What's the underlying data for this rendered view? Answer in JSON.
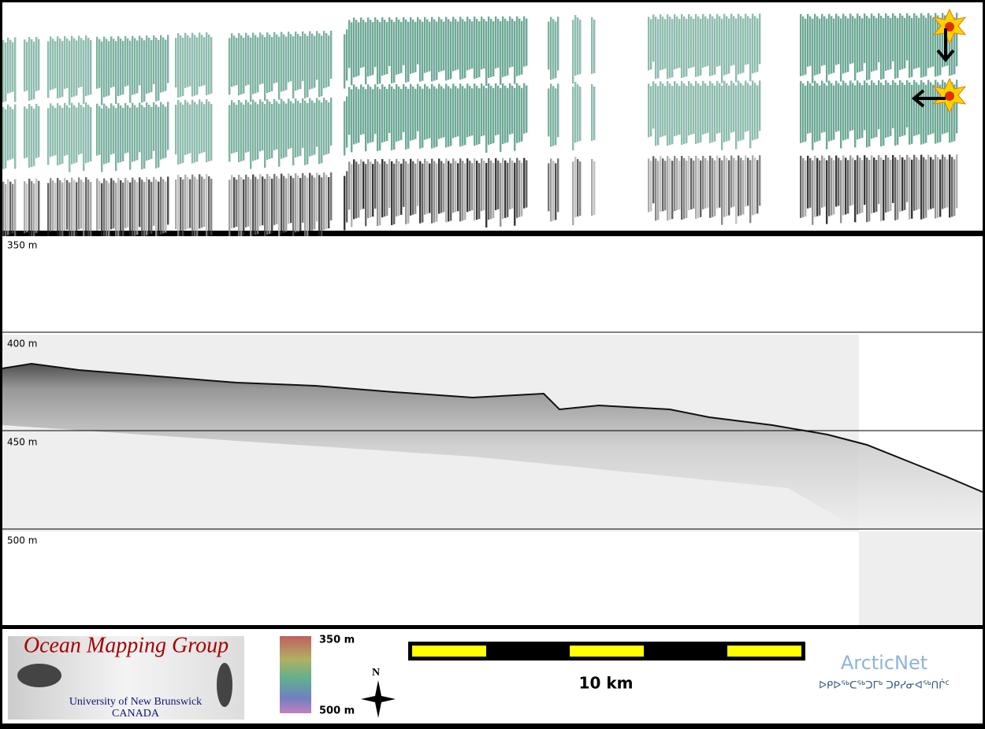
{
  "depth_labels": [
    "350 m",
    "400 m",
    "450 m",
    "500 m"
  ],
  "footer": {
    "logo_title": "Ocean Mapping Group",
    "logo_university": "University of New Brunswick",
    "logo_country": "CANADA",
    "colorbar_top": "350 m",
    "colorbar_bottom": "500 m",
    "north": "N",
    "scale_label": "10 km",
    "arcticnet": "ArcticNet",
    "arcticnet_inuktitut": "ᐅᑭᐅᖅᑕᖅᑐᒥᒃ ᑐᑭᓯᓂᐊᖅᑎᒌᑦ"
  }
}
